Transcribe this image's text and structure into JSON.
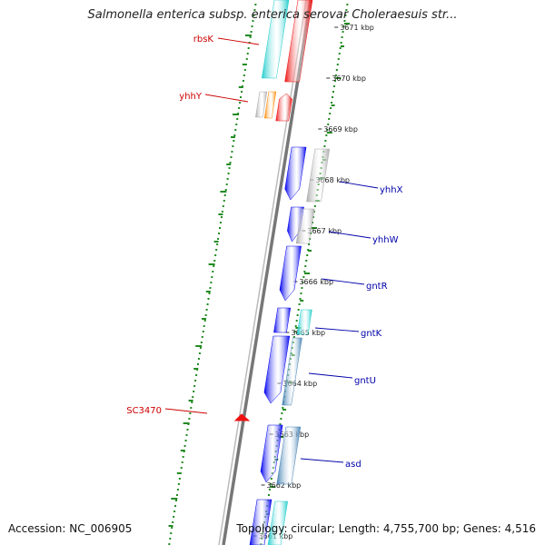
{
  "title": "Salmonella enterica subsp. enterica serovar Choleraesuis str...",
  "footer": {
    "accession": "Accession: NC_006905",
    "summary": "Topology: circular; Length: 4,755,700 bp; Genes: 4,516"
  },
  "scale": {
    "unit": "kbp",
    "ticks": [
      {
        "value": 3671,
        "label": "3671 kbp"
      },
      {
        "value": 3670,
        "label": "3670 kbp"
      },
      {
        "value": 3669,
        "label": "3669 kbp"
      },
      {
        "value": 3668,
        "label": "3668 kbp"
      },
      {
        "value": 3667,
        "label": "3667 kbp"
      },
      {
        "value": 3666,
        "label": "3666 kbp"
      },
      {
        "value": 3665,
        "label": "3665 kbp"
      },
      {
        "value": 3664,
        "label": "3664 kbp"
      },
      {
        "value": 3663,
        "label": "3663 kbp"
      },
      {
        "value": 3662,
        "label": "3662 kbp"
      },
      {
        "value": 3661,
        "label": "3661 kbp"
      }
    ]
  },
  "colors": {
    "forward_label": "#cc0000",
    "reverse_label": "#0000aa",
    "gc_dots": "#228b22",
    "backbone": "#888888"
  },
  "gene_labels": [
    {
      "name": "rbsK",
      "side": "left",
      "color": "#cc0000"
    },
    {
      "name": "yhhY",
      "side": "left",
      "color": "#cc0000"
    },
    {
      "name": "SC3470",
      "side": "left",
      "color": "#cc0000"
    },
    {
      "name": "yhhX",
      "side": "right",
      "color": "#0000aa"
    },
    {
      "name": "yhhW",
      "side": "right",
      "color": "#0000aa"
    },
    {
      "name": "gntR",
      "side": "right",
      "color": "#0000aa"
    },
    {
      "name": "gntK",
      "side": "right",
      "color": "#0000aa"
    },
    {
      "name": "gntU",
      "side": "right",
      "color": "#0000aa"
    },
    {
      "name": "asd",
      "side": "right",
      "color": "#0000aa"
    }
  ],
  "features": [
    {
      "name": "cyan-top",
      "color": "#22cccc"
    },
    {
      "name": "red-top",
      "color": "#ee1111"
    },
    {
      "name": "gray-yhhY",
      "color": "#aaaaaa"
    },
    {
      "name": "orange",
      "color": "#ff8800"
    },
    {
      "name": "red-arrow-yhhY",
      "color": "#ee1111"
    },
    {
      "name": "blue-yhhX",
      "color": "#0000ee"
    },
    {
      "name": "gray-yhhX",
      "color": "#aaaaaa"
    },
    {
      "name": "blue-yhhW",
      "color": "#0000ee"
    },
    {
      "name": "gray-yhhW",
      "color": "#aaaaaa"
    },
    {
      "name": "blue-gntR",
      "color": "#0000ee"
    },
    {
      "name": "blue-gntK",
      "color": "#0000ee"
    },
    {
      "name": "cyan-gntK",
      "color": "#22cccc"
    },
    {
      "name": "blue-gntU",
      "color": "#0000ee"
    },
    {
      "name": "steel-gntU",
      "color": "#4682b4"
    },
    {
      "name": "red-SC3470",
      "color": "#ee1111"
    },
    {
      "name": "blue-asd",
      "color": "#0000ee"
    },
    {
      "name": "steel-asd",
      "color": "#4682b4"
    },
    {
      "name": "blue-bottom",
      "color": "#0000ee"
    },
    {
      "name": "cyan-bottom",
      "color": "#22cccc"
    }
  ]
}
